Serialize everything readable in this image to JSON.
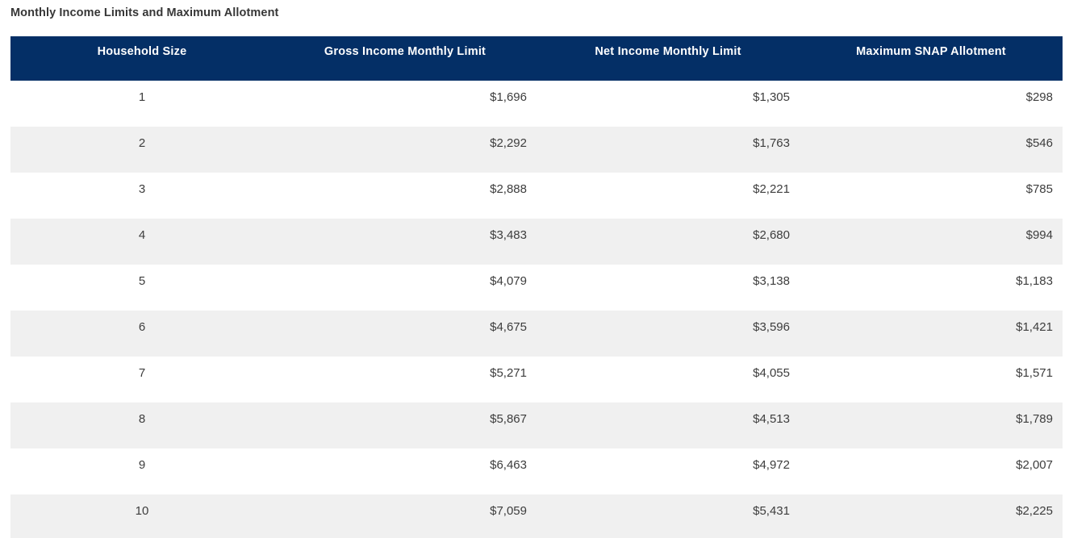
{
  "title": "Monthly Income Limits and Maximum Allotment",
  "theme": {
    "header_bg": "#042f66",
    "header_fg": "#ffffff",
    "stripe_bg": "#f0f0f0",
    "cell_fg": "#3d3d3d",
    "title_fg": "#373737",
    "page_bg": "#ffffff"
  },
  "chart_data": {
    "type": "table",
    "title": "Monthly Income Limits and Maximum Allotment",
    "columns": [
      "Household Size",
      "Gross Income Monthly Limit",
      "Net Income Monthly Limit",
      "Maximum SNAP Allotment"
    ],
    "rows": [
      {
        "household_size": "1",
        "gross": "$1,696",
        "net": "$1,305",
        "max": "$298"
      },
      {
        "household_size": "2",
        "gross": "$2,292",
        "net": "$1,763",
        "max": "$546"
      },
      {
        "household_size": "3",
        "gross": "$2,888",
        "net": "$2,221",
        "max": "$785"
      },
      {
        "household_size": "4",
        "gross": "$3,483",
        "net": "$2,680",
        "max": "$994"
      },
      {
        "household_size": "5",
        "gross": "$4,079",
        "net": "$3,138",
        "max": "$1,183"
      },
      {
        "household_size": "6",
        "gross": "$4,675",
        "net": "$3,596",
        "max": "$1,421"
      },
      {
        "household_size": "7",
        "gross": "$5,271",
        "net": "$4,055",
        "max": "$1,571"
      },
      {
        "household_size": "8",
        "gross": "$5,867",
        "net": "$4,513",
        "max": "$1,789"
      },
      {
        "household_size": "9",
        "gross": "$6,463",
        "net": "$4,972",
        "max": "$2,007"
      },
      {
        "household_size": "10",
        "gross": "$7,059",
        "net": "$5,431",
        "max": "$2,225"
      }
    ]
  }
}
